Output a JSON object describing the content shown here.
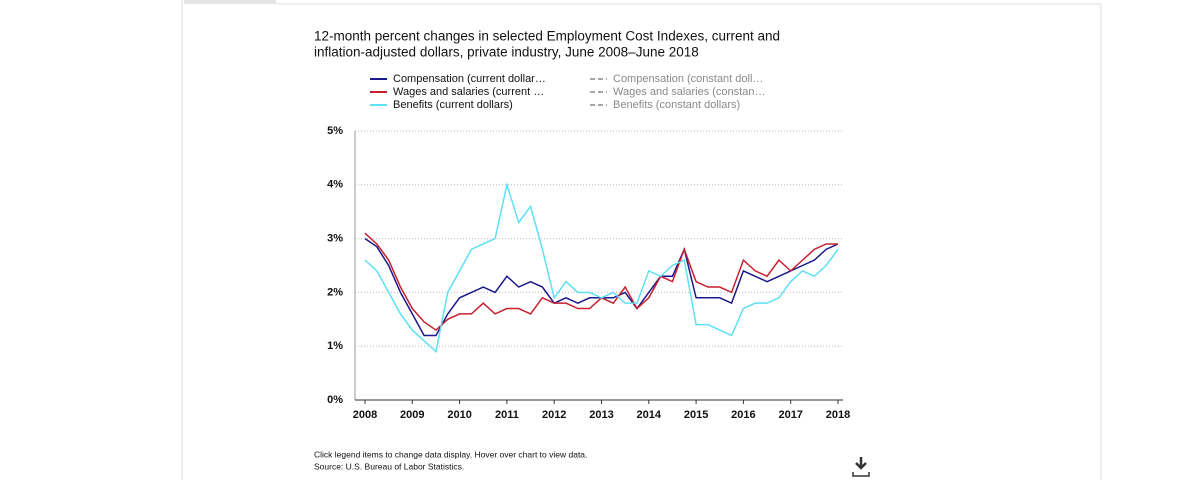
{
  "chart_data": {
    "type": "line",
    "title": [
      "12-month percent changes in selected Employment Cost Indexes, current and",
      "inflation-adjusted dollars, private industry, June 2008–June 2018"
    ],
    "x": [
      2008,
      2008.25,
      2008.5,
      2008.75,
      2009,
      2009.25,
      2009.5,
      2009.75,
      2010,
      2010.25,
      2010.5,
      2010.75,
      2011,
      2011.25,
      2011.5,
      2011.75,
      2012,
      2012.25,
      2012.5,
      2012.75,
      2013,
      2013.25,
      2013.5,
      2013.75,
      2014,
      2014.25,
      2014.5,
      2014.75,
      2015,
      2015.25,
      2015.5,
      2015.75,
      2016,
      2016.25,
      2016.5,
      2016.75,
      2017,
      2017.25,
      2017.5,
      2017.75,
      2018
    ],
    "xlim": [
      2008,
      2018
    ],
    "xticks": [
      2008,
      2009,
      2010,
      2011,
      2012,
      2013,
      2014,
      2015,
      2016,
      2017,
      2018
    ],
    "ylim": [
      0,
      5
    ],
    "yticks": [
      {
        "value": 0,
        "label": "0%"
      },
      {
        "value": 1,
        "label": "1%"
      },
      {
        "value": 2,
        "label": "2%"
      },
      {
        "value": 3,
        "label": "3%"
      },
      {
        "value": 4,
        "label": "4%"
      },
      {
        "value": 5,
        "label": "5%"
      }
    ],
    "grid": true,
    "series": [
      {
        "name": "Compensation (current dollar…",
        "color": "#1a1a8c",
        "values": [
          3.0,
          2.85,
          2.5,
          2.0,
          1.6,
          1.2,
          1.2,
          1.6,
          1.9,
          2.0,
          2.1,
          2.0,
          2.3,
          2.1,
          2.2,
          2.1,
          1.8,
          1.9,
          1.8,
          1.9,
          1.9,
          1.9,
          2.0,
          1.7,
          2.0,
          2.3,
          2.3,
          2.8,
          1.9,
          1.9,
          1.9,
          1.8,
          2.4,
          2.3,
          2.2,
          2.3,
          2.4,
          2.5,
          2.6,
          2.8,
          2.9
        ]
      },
      {
        "name": "Wages and salaries (current …",
        "color": "#c8202f",
        "values": [
          3.1,
          2.9,
          2.6,
          2.1,
          1.7,
          1.45,
          1.3,
          1.5,
          1.6,
          1.6,
          1.8,
          1.6,
          1.7,
          1.7,
          1.6,
          1.9,
          1.8,
          1.8,
          1.7,
          1.7,
          1.9,
          1.8,
          2.1,
          1.7,
          1.9,
          2.3,
          2.2,
          2.8,
          2.2,
          2.1,
          2.1,
          2.0,
          2.6,
          2.4,
          2.3,
          2.6,
          2.4,
          2.6,
          2.8,
          2.9,
          2.9
        ]
      },
      {
        "name": "Benefits (current dollars)",
        "color": "#5ee0f5",
        "values": [
          2.6,
          2.4,
          2.0,
          1.6,
          1.3,
          1.1,
          0.9,
          2.0,
          2.4,
          2.8,
          2.9,
          3.0,
          4.0,
          3.3,
          3.6,
          2.8,
          1.9,
          2.2,
          2.0,
          2.0,
          1.9,
          2.0,
          1.8,
          1.8,
          2.4,
          2.3,
          2.5,
          2.6,
          1.4,
          1.4,
          1.3,
          1.2,
          1.7,
          1.8,
          1.8,
          1.9,
          2.2,
          2.4,
          2.3,
          2.5,
          2.8
        ]
      }
    ],
    "legend_inactive": {
      "color": "#8a8a8a",
      "names": [
        "Compensation (constant doll…",
        "Wages and salaries (constan…",
        "Benefits (constant dollars)"
      ]
    },
    "notes": [
      "Click legend items to change data display. Hover over chart to view data.",
      "Source: U.S. Bureau of Labor Statistics."
    ]
  }
}
